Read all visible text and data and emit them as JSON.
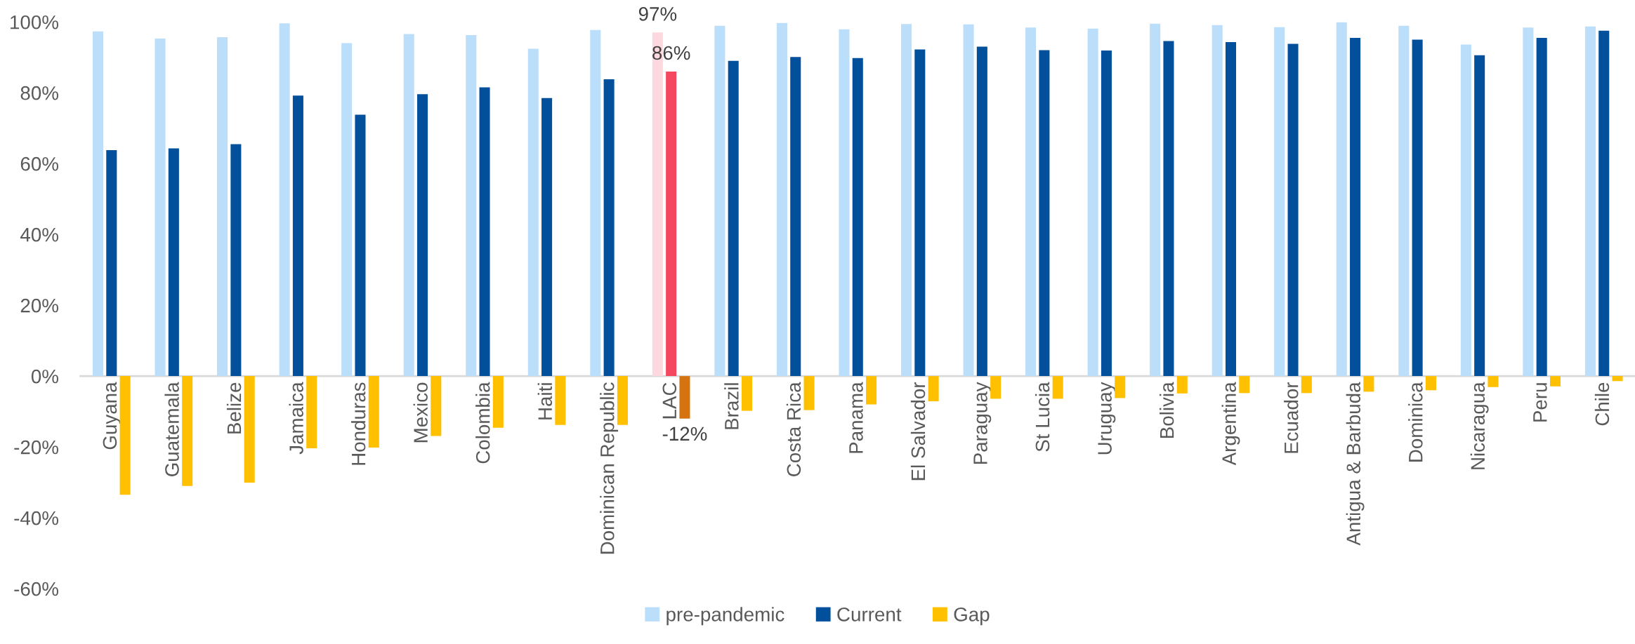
{
  "chart_data": {
    "type": "bar",
    "categories": [
      "Guyana",
      "Guatemala",
      "Belize",
      "Jamaica",
      "Honduras",
      "Mexico",
      "Colombia",
      "Haiti",
      "Dominican Republic",
      "LAC",
      "Brazil",
      "Costa Rica",
      "Panama",
      "El Salvador",
      "Paraguay",
      "St Lucia",
      "Uruguay",
      "Bolivia",
      "Argentina",
      "Ecuador",
      "Antigua & Barbuda",
      "Dominica",
      "Nicaragua",
      "Peru",
      "Chile"
    ],
    "series": [
      {
        "name": "pre-pandemic",
        "color": "#bbdefb",
        "colors": [
          "#bbdefb",
          "#bbdefb",
          "#bbdefb",
          "#bbdefb",
          "#bbdefb",
          "#bbdefb",
          "#bbdefb",
          "#bbdefb",
          "#bbdefb",
          "#fdd9df",
          "#bbdefb",
          "#bbdefb",
          "#bbdefb",
          "#bbdefb",
          "#bbdefb",
          "#bbdefb",
          "#bbdefb",
          "#bbdefb",
          "#bbdefb",
          "#bbdefb",
          "#bbdefb",
          "#bbdefb",
          "#bbdefb",
          "#bbdefb",
          "#bbdefb"
        ],
        "values": [
          97.3,
          95.3,
          95.7,
          99.6,
          94.0,
          96.6,
          96.3,
          92.4,
          97.7,
          97,
          98.9,
          99.7,
          97.9,
          99.4,
          99.3,
          98.4,
          98.1,
          99.5,
          99.1,
          98.5,
          99.9,
          98.9,
          93.6,
          98.4,
          98.7
        ],
        "value_labels": [
          null,
          null,
          null,
          null,
          null,
          null,
          null,
          null,
          null,
          "97%",
          null,
          null,
          null,
          null,
          null,
          null,
          null,
          null,
          null,
          null,
          null,
          null,
          null,
          null,
          null
        ]
      },
      {
        "name": "Current",
        "color": "#02509b",
        "colors": [
          "#02509b",
          "#02509b",
          "#02509b",
          "#02509b",
          "#02509b",
          "#02509b",
          "#02509b",
          "#02509b",
          "#02509b",
          "#f5475f",
          "#02509b",
          "#02509b",
          "#02509b",
          "#02509b",
          "#02509b",
          "#02509b",
          "#02509b",
          "#02509b",
          "#02509b",
          "#02509b",
          "#02509b",
          "#02509b",
          "#02509b",
          "#02509b",
          "#02509b"
        ],
        "values": [
          63.8,
          64.3,
          65.5,
          79.2,
          73.8,
          79.6,
          81.5,
          78.5,
          83.8,
          86,
          89.0,
          90.1,
          89.8,
          92.2,
          93.0,
          92.0,
          91.9,
          94.6,
          94.3,
          93.8,
          95.5,
          95.0,
          90.6,
          95.5,
          97.5
        ],
        "value_labels": [
          null,
          null,
          null,
          null,
          null,
          null,
          null,
          null,
          null,
          "86%",
          null,
          null,
          null,
          null,
          null,
          null,
          null,
          null,
          null,
          null,
          null,
          null,
          null,
          null,
          null
        ]
      },
      {
        "name": "Gap",
        "color": "#ffc000",
        "colors": [
          "#ffc000",
          "#ffc000",
          "#ffc000",
          "#ffc000",
          "#ffc000",
          "#ffc000",
          "#ffc000",
          "#ffc000",
          "#ffc000",
          "#d4730f",
          "#ffc000",
          "#ffc000",
          "#ffc000",
          "#ffc000",
          "#ffc000",
          "#ffc000",
          "#ffc000",
          "#ffc000",
          "#ffc000",
          "#ffc000",
          "#ffc000",
          "#ffc000",
          "#ffc000",
          "#ffc000",
          "#ffc000"
        ],
        "values": [
          -33.5,
          -31.0,
          -30.1,
          -20.4,
          -20.2,
          -16.9,
          -14.6,
          -13.8,
          -13.8,
          -12,
          -9.8,
          -9.6,
          -8.0,
          -7.1,
          -6.4,
          -6.4,
          -6.2,
          -4.9,
          -4.8,
          -4.8,
          -4.4,
          -4.0,
          -3.1,
          -2.9,
          -1.4
        ],
        "value_labels": [
          null,
          null,
          null,
          null,
          null,
          null,
          null,
          null,
          null,
          "-12%",
          null,
          null,
          null,
          null,
          null,
          null,
          null,
          null,
          null,
          null,
          null,
          null,
          null,
          null,
          null
        ]
      }
    ],
    "ylim": [
      -60,
      100
    ],
    "yticks": [
      {
        "value": -60,
        "label": "-60%"
      },
      {
        "value": -40,
        "label": "-40%"
      },
      {
        "value": -20,
        "label": "-20%"
      },
      {
        "value": 0,
        "label": "0%"
      },
      {
        "value": 20,
        "label": "20%"
      },
      {
        "value": 40,
        "label": "40%"
      },
      {
        "value": 60,
        "label": "60%"
      },
      {
        "value": 80,
        "label": "80%"
      },
      {
        "value": 100,
        "label": "100%"
      }
    ],
    "grid": false,
    "legend": "bottom"
  }
}
